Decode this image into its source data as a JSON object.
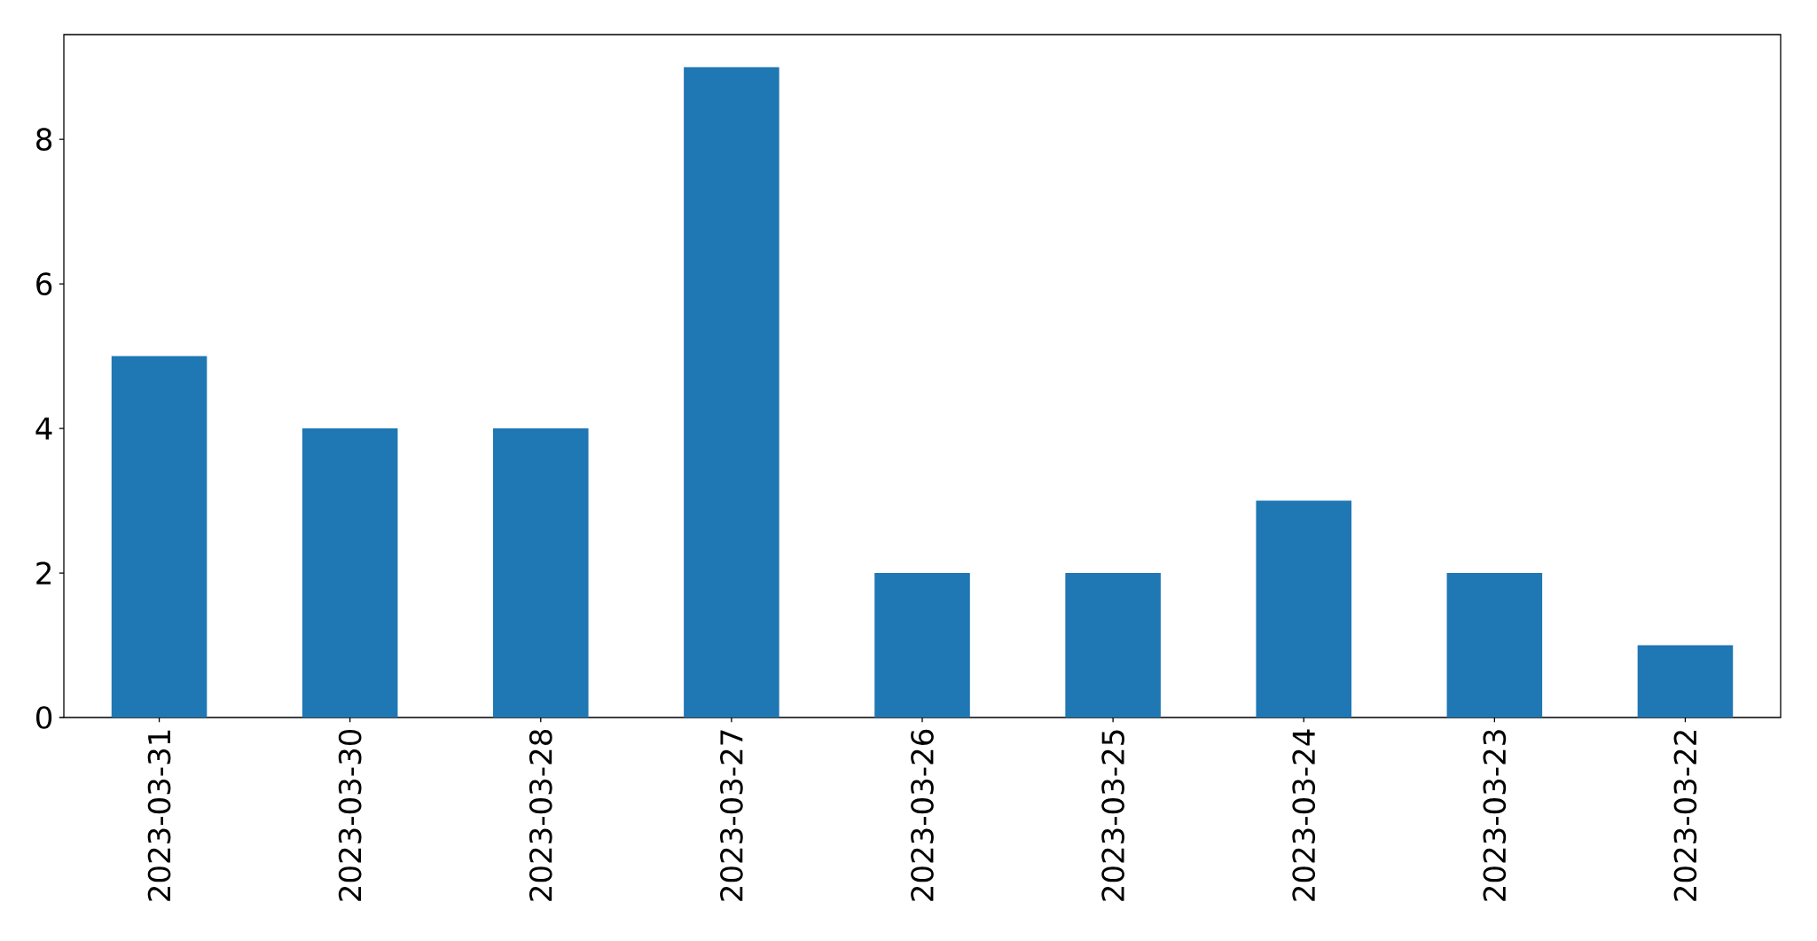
{
  "chart_data": {
    "type": "bar",
    "categories": [
      "2023-03-31",
      "2023-03-30",
      "2023-03-28",
      "2023-03-27",
      "2023-03-26",
      "2023-03-25",
      "2023-03-24",
      "2023-03-23",
      "2023-03-22"
    ],
    "values": [
      5,
      4,
      4,
      9,
      2,
      2,
      3,
      2,
      1
    ],
    "color": "#1f77b4",
    "ylim": [
      0,
      9.45
    ],
    "yticks": [
      0,
      2,
      4,
      6,
      8
    ]
  }
}
